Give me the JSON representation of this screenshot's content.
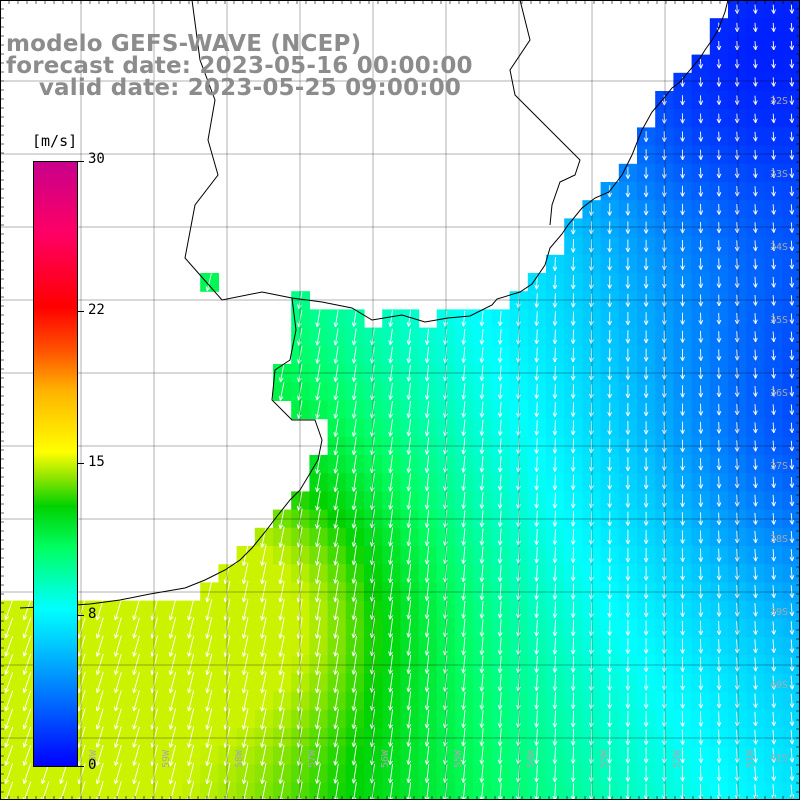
{
  "title": {
    "line1": "modelo GEFS-WAVE (NCEP)",
    "line2": "forecast date: 2023-05-16 00:00:00",
    "line3": "    valid date: 2023-05-25 09:00:00"
  },
  "colorbar": {
    "unit": "[m/s]",
    "ticks": [
      "30",
      "22",
      "15",
      "8",
      "0"
    ]
  },
  "lat_labels": [
    "32S",
    "33S",
    "34S",
    "35S",
    "36S",
    "37S",
    "38S",
    "39S",
    "40S",
    "41S"
  ],
  "lon_labels": [
    "60W",
    "59W",
    "58W",
    "57W",
    "56W",
    "55W",
    "54W",
    "53W",
    "52W",
    "51W"
  ],
  "colors": {
    "land": "#ffffff",
    "coast": "#000000",
    "grid": "#000000",
    "arrows": "#ffffff",
    "labels": "#aaaaaa"
  }
}
